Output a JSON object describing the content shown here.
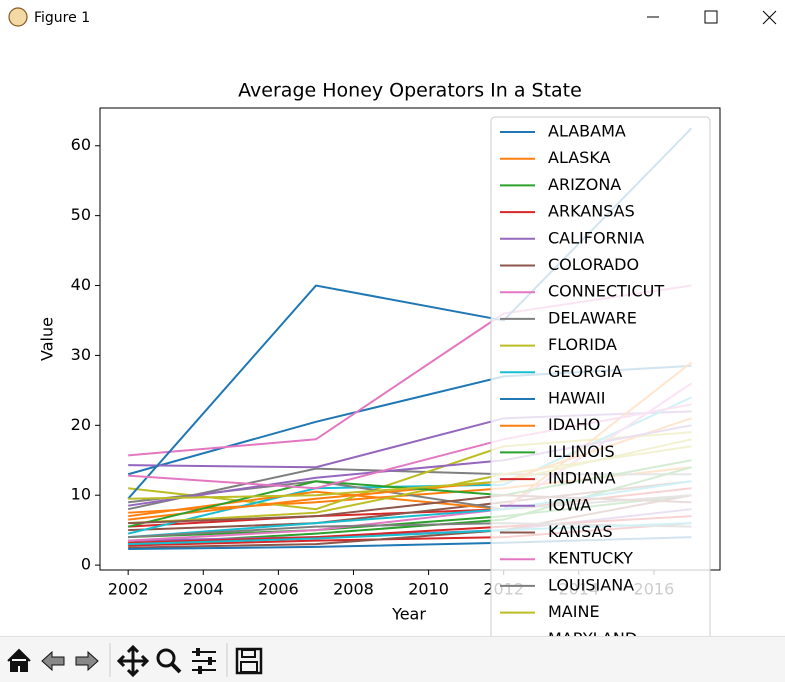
{
  "window_title": "Figure 1",
  "chart_data": {
    "type": "line",
    "title": "Average Honey Operators In a State",
    "xlabel": "Year",
    "ylabel": "Value",
    "x": [
      2002,
      2007,
      2012,
      2017
    ],
    "xlim": [
      2001.25,
      2017.76
    ],
    "ylim": [
      -0.7,
      65.4
    ],
    "xticks": [
      2002,
      2004,
      2006,
      2008,
      2010,
      2012,
      2014,
      2016
    ],
    "yticks": [
      0,
      10,
      20,
      30,
      40,
      50,
      60
    ],
    "legend": "upper right",
    "series": [
      {
        "name": "ALABAMA",
        "color": "#1f77b4",
        "values": [
          13,
          20.5,
          27,
          28.5
        ]
      },
      {
        "name": "ALASKA",
        "color": "#ff7f0e",
        "values": [
          7.5,
          9,
          11,
          14
        ]
      },
      {
        "name": "ARIZONA",
        "color": "#2ca02c",
        "values": [
          4,
          5,
          7,
          10
        ]
      },
      {
        "name": "ARKANSAS",
        "color": "#d62728",
        "values": [
          5.5,
          7,
          8,
          11
        ]
      },
      {
        "name": "CALIFORNIA",
        "color": "#9467bd",
        "values": [
          14.3,
          14,
          21,
          22
        ]
      },
      {
        "name": "COLORADO",
        "color": "#8c564b",
        "values": [
          5,
          6,
          9,
          12
        ]
      },
      {
        "name": "CONNECTICUT",
        "color": "#e377c2",
        "values": [
          15.7,
          18,
          36,
          40
        ]
      },
      {
        "name": "DELAWARE",
        "color": "#7f7f7f",
        "values": [
          8,
          13.8,
          13,
          13
        ]
      },
      {
        "name": "FLORIDA",
        "color": "#bcbd22",
        "values": [
          11,
          8,
          17,
          19
        ]
      },
      {
        "name": "GEORGIA",
        "color": "#17becf",
        "values": [
          4.5,
          11,
          11.5,
          24
        ]
      },
      {
        "name": "HAWAII",
        "color": "#1f77b4",
        "values": [
          9.5,
          40,
          35,
          62.5
        ]
      },
      {
        "name": "IDAHO",
        "color": "#ff7f0e",
        "values": [
          7,
          10.5,
          8,
          29
        ]
      },
      {
        "name": "ILLINOIS",
        "color": "#2ca02c",
        "values": [
          3,
          4.5,
          6.5,
          14
        ]
      },
      {
        "name": "INDIANA",
        "color": "#d62728",
        "values": [
          2.8,
          3.5,
          4,
          6
        ]
      },
      {
        "name": "IOWA",
        "color": "#9467bd",
        "values": [
          3.5,
          4,
          5,
          8
        ]
      },
      {
        "name": "KANSAS",
        "color": "#8c564b",
        "values": [
          2.5,
          3,
          5,
          10
        ]
      },
      {
        "name": "KENTUCKY",
        "color": "#e377c2",
        "values": [
          3.5,
          5,
          8,
          26
        ]
      },
      {
        "name": "LOUISIANA",
        "color": "#7f7f7f",
        "values": [
          9,
          12,
          8,
          10
        ]
      },
      {
        "name": "MAINE",
        "color": "#bcbd22",
        "values": [
          6,
          7.5,
          13,
          17
        ]
      },
      {
        "name": "MARYLAND",
        "color": "#17becf",
        "values": [
          4,
          6,
          8,
          12
        ]
      },
      {
        "color": "#1f77b4",
        "values": [
          2.3,
          2.6,
          3.2,
          4
        ]
      },
      {
        "color": "#ff7f0e",
        "values": [
          6.5,
          9.5,
          12,
          21
        ]
      },
      {
        "color": "#2ca02c",
        "values": [
          5.5,
          12,
          10,
          15
        ]
      },
      {
        "color": "#d62728",
        "values": [
          3.2,
          4,
          5.5,
          7
        ]
      },
      {
        "color": "#9467bd",
        "values": [
          8.5,
          12.5,
          15,
          20
        ]
      },
      {
        "color": "#8c564b",
        "values": [
          6,
          7,
          10,
          9
        ]
      },
      {
        "color": "#e377c2",
        "values": [
          12.8,
          11,
          18,
          23
        ]
      },
      {
        "color": "#7f7f7f",
        "values": [
          4,
          5.5,
          6,
          5.5
        ]
      },
      {
        "color": "#bcbd22",
        "values": [
          9.5,
          10,
          12,
          18
        ]
      },
      {
        "color": "#17becf",
        "values": [
          3,
          3.8,
          5,
          6
        ]
      }
    ]
  }
}
